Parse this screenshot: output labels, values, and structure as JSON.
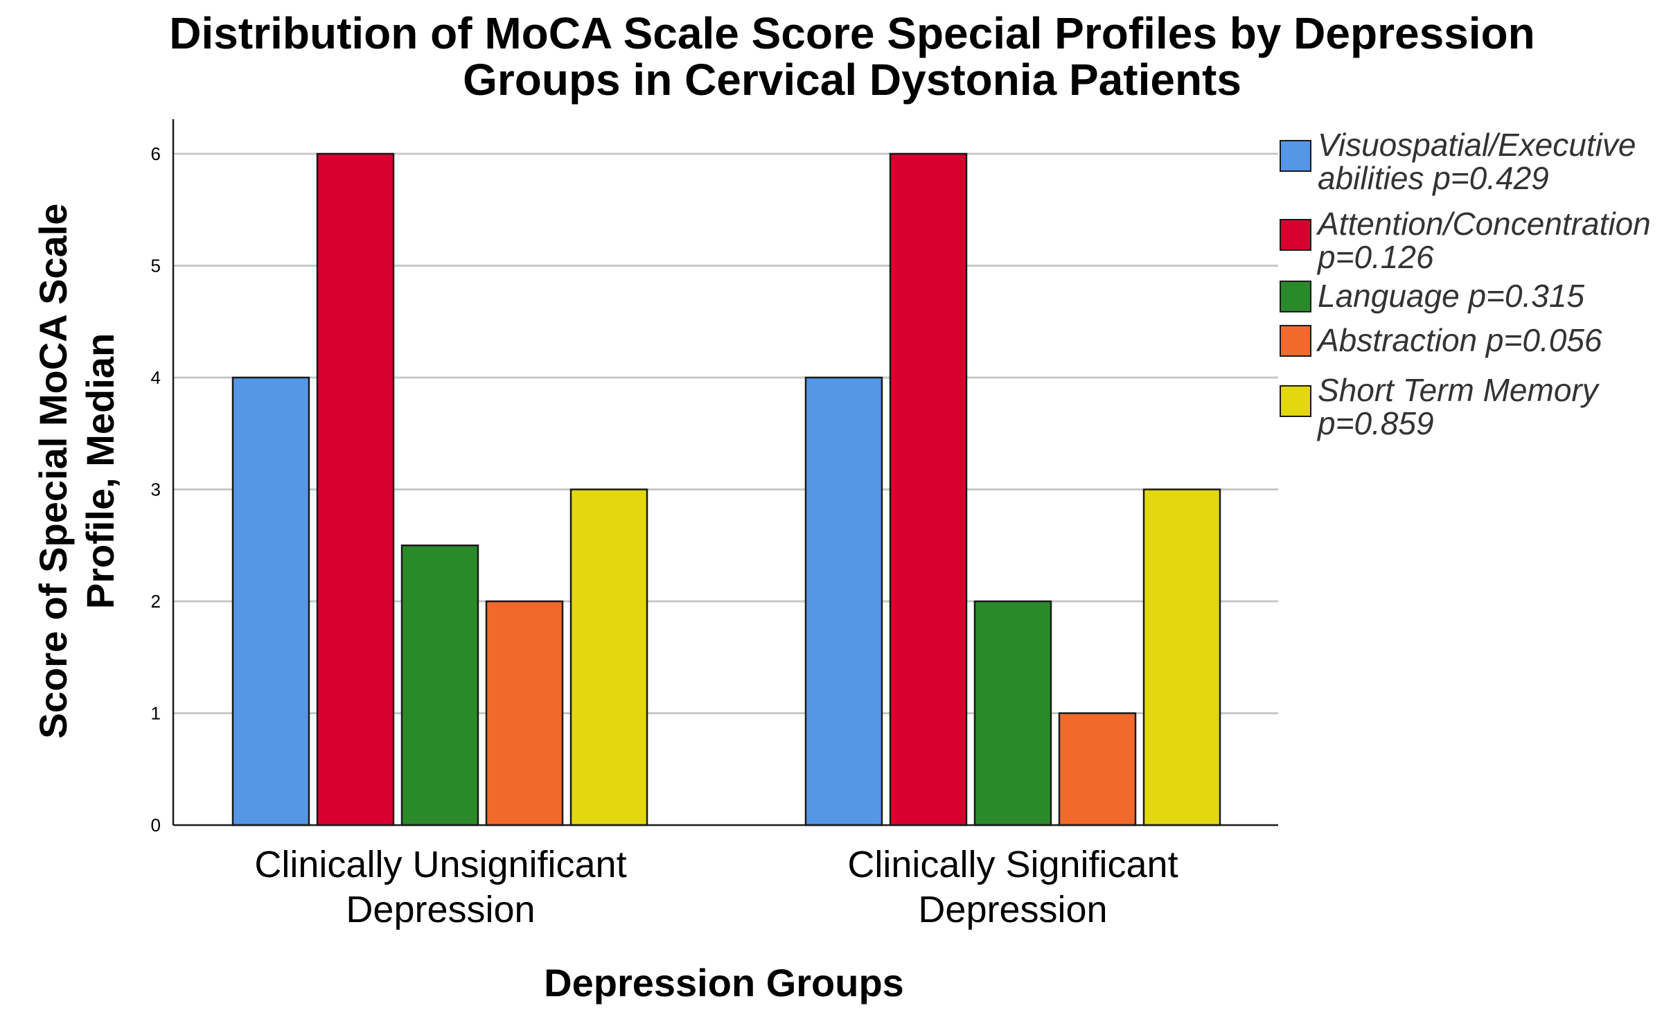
{
  "chart_data": {
    "type": "bar",
    "title": "Distribution of MoCA Scale Score Special Profiles by Depression Groups in Cervical Dystonia Patients",
    "title_lines": [
      "Distribution of MoCA Scale Score Special Profiles by Depression",
      "Groups in Cervical Dystonia Patients"
    ],
    "xlabel": "Depression Groups",
    "ylabel": "Score of Special MoCA Scale Profile, Median",
    "ylabel_lines": [
      "Score of Special MoCA Scale",
      "Profile, Median"
    ],
    "categories": [
      "Clinically Unsignificant Depression",
      "Clinically Significant Depression"
    ],
    "category_lines": [
      [
        "Clinically Unsignificant",
        "Depression"
      ],
      [
        "Clinically Significant",
        "Depression"
      ]
    ],
    "ylim": [
      0,
      6.3
    ],
    "yticks": [
      0,
      1,
      2,
      3,
      4,
      5,
      6
    ],
    "grid": true,
    "legend_position": "right",
    "series": [
      {
        "name": "Visuospatial/Executive abilities p=0.429",
        "name_lines": [
          "Visuospatial/Executive",
          "abilities p=0.429"
        ],
        "color": "#5596E6",
        "values": [
          4,
          4
        ]
      },
      {
        "name": "Attention/Concentration p=0.126",
        "name_lines": [
          "Attention/Concentration",
          "p=0.126"
        ],
        "color": "#D8002F",
        "values": [
          6,
          6
        ]
      },
      {
        "name": "Language p=0.315",
        "name_lines": [
          "Language p=0.315"
        ],
        "color": "#2A8A2A",
        "values": [
          2.5,
          2
        ]
      },
      {
        "name": "Abstraction p=0.056",
        "name_lines": [
          "Abstraction p=0.056"
        ],
        "color": "#F26A2B",
        "values": [
          2,
          1
        ]
      },
      {
        "name": "Short Term Memory p=0.859",
        "name_lines": [
          "Short Term Memory",
          "p=0.859"
        ],
        "color": "#E3D80F",
        "values": [
          3,
          3
        ]
      }
    ]
  }
}
